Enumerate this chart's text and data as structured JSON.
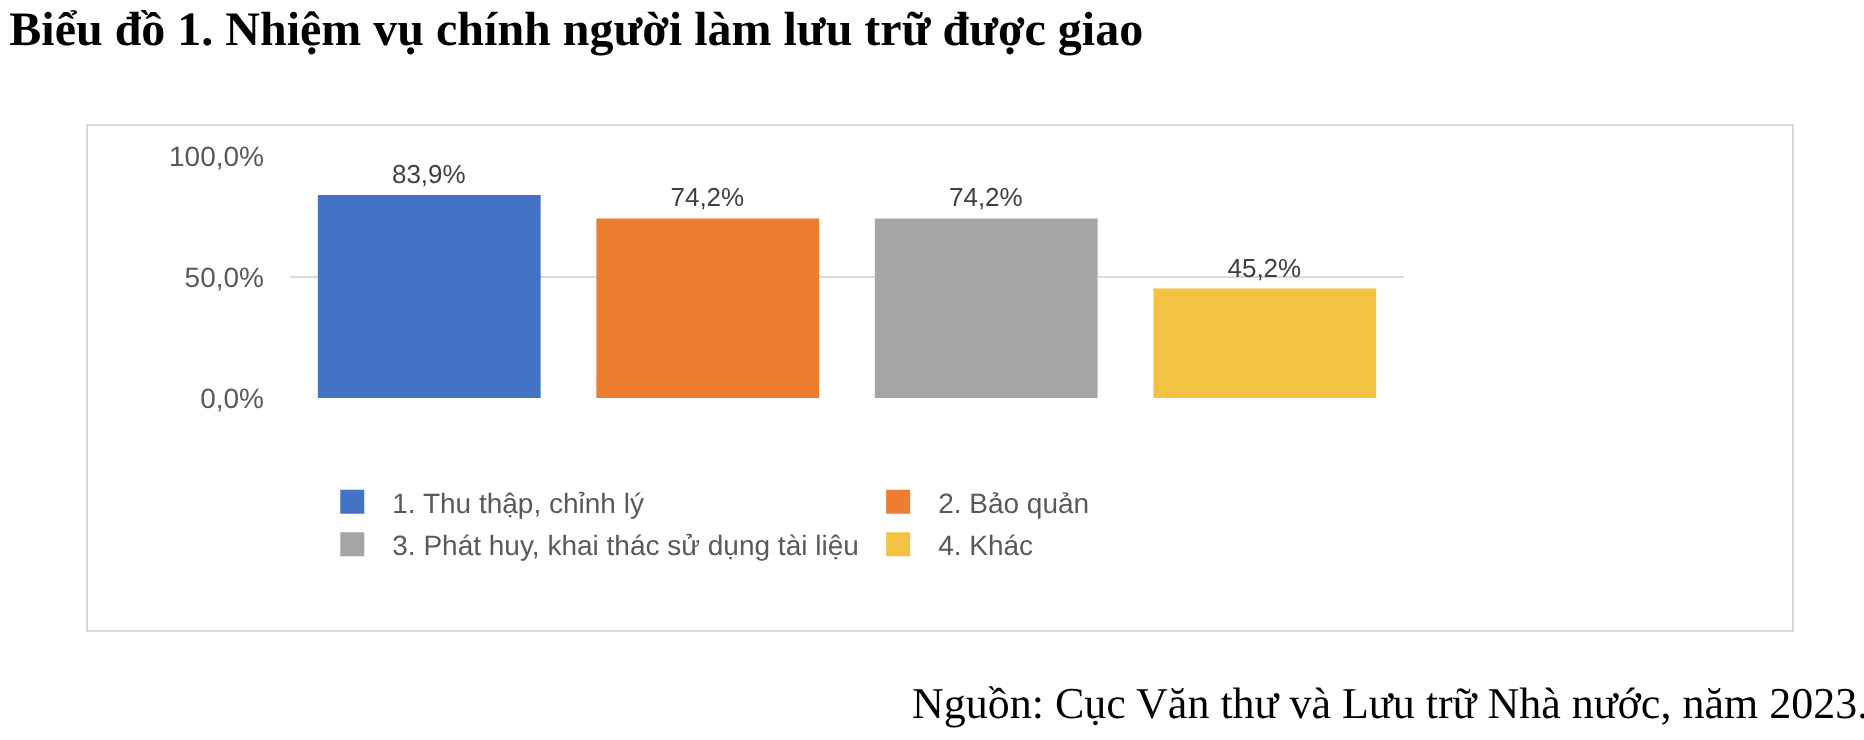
{
  "chart_data": {
    "type": "bar",
    "title": "Biểu đồ 1. Nhiệm vụ chính người làm lưu trữ được giao",
    "categories": [
      null,
      null,
      null,
      null
    ],
    "series": [
      {
        "name": "1. Thu thập, chỉnh lý",
        "color": "#4472c4",
        "values": [
          83.9,
          null,
          null,
          null
        ],
        "value_labels": [
          "83,9%",
          null,
          null,
          null
        ]
      },
      {
        "name": "2. Bảo quản",
        "color": "#ed7d31",
        "values": [
          null,
          74.2,
          null,
          null
        ],
        "value_labels": [
          null,
          "74,2%",
          null,
          null
        ]
      },
      {
        "name": "3. Phát huy, khai thác sử dụng tài liệu",
        "color": "#a5a5a5",
        "values": [
          null,
          null,
          74.2,
          null
        ],
        "value_labels": [
          null,
          null,
          "74,2%",
          null
        ]
      },
      {
        "name": "4. Khác",
        "color": "#f4c242",
        "values": [
          null,
          null,
          null,
          45.2
        ],
        "value_labels": [
          null,
          null,
          null,
          "45,2%"
        ]
      }
    ],
    "ylim": [
      0,
      100
    ],
    "yticks": [
      {
        "value": 0,
        "label": "0,0%"
      },
      {
        "value": 50,
        "label": "50,0%"
      },
      {
        "value": 100,
        "label": "100,0%"
      }
    ],
    "grid": "y",
    "legend": "bottom",
    "tick_labels": "y",
    "annotations": [
      "Nguồn: Cục Văn thư và Lưu trữ Nhà nước, năm 2023."
    ]
  }
}
